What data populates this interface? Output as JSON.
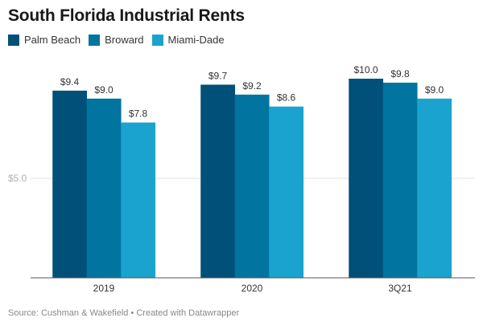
{
  "chart_data": {
    "type": "bar",
    "title": "South Florida Industrial Rents",
    "categories": [
      "2019",
      "2020",
      "3Q21"
    ],
    "series": [
      {
        "name": "Palm Beach",
        "color": "#00507a",
        "values": [
          9.4,
          9.7,
          10.0
        ],
        "labels": [
          "$9.4",
          "$9.7",
          "$10.0"
        ]
      },
      {
        "name": "Broward",
        "color": "#0174a0",
        "values": [
          9.0,
          9.2,
          9.8
        ],
        "labels": [
          "$9.0",
          "$9.2",
          "$9.8"
        ]
      },
      {
        "name": "Miami-Dade",
        "color": "#1aa3cf",
        "values": [
          7.8,
          8.6,
          9.0
        ],
        "labels": [
          "$7.8",
          "$8.6",
          "$9.0"
        ]
      }
    ],
    "xlabel": "",
    "ylabel": "",
    "ylim": [
      0,
      10
    ],
    "yticks": [
      {
        "value": 5,
        "label": "$5.0"
      }
    ],
    "grid": true,
    "legend_position": "top-left"
  },
  "source": "Source: Cushman & Wakefield • Created with Datawrapper"
}
